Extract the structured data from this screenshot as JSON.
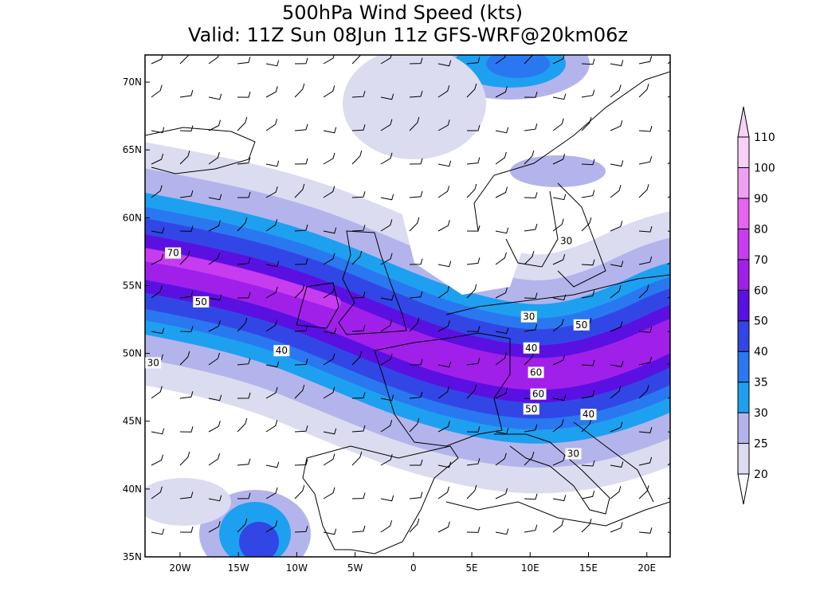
{
  "title": [
    "500hPa Wind Speed (kts)",
    "Valid: 11Z Sun 08Jun 11z GFS-WRF@20km06z"
  ],
  "map": {
    "lonlim": [
      -23,
      22
    ],
    "latlim": [
      35,
      72
    ],
    "lonticks": [
      {
        "value": -20,
        "label": "20W"
      },
      {
        "value": -15,
        "label": "15W"
      },
      {
        "value": -10,
        "label": "10W"
      },
      {
        "value": -5,
        "label": "5W"
      },
      0,
      {
        "value": 5,
        "label": "5E"
      },
      {
        "value": 10,
        "label": "10E"
      },
      {
        "value": 15,
        "label": "15E"
      },
      {
        "value": 20,
        "label": "20E"
      }
    ],
    "latticks": [
      {
        "value": 35,
        "label": "35N"
      },
      {
        "value": 40,
        "label": "40N"
      },
      {
        "value": 45,
        "label": "45N"
      },
      {
        "value": 50,
        "label": "50N"
      },
      {
        "value": 55,
        "label": "55N"
      },
      {
        "value": 60,
        "label": "60N"
      },
      {
        "value": 65,
        "label": "65N"
      },
      {
        "value": 70,
        "label": "70N"
      }
    ],
    "contour_labels": [
      {
        "lon": -20.6,
        "lat": 57.4,
        "value": 70
      },
      {
        "lon": -18.2,
        "lat": 53.8,
        "value": 50
      },
      {
        "lon": -11.3,
        "lat": 50.2,
        "value": 40
      },
      {
        "lon": -22.3,
        "lat": 49.3,
        "value": 30
      },
      {
        "lon": 13.1,
        "lat": 58.3,
        "value": 30
      },
      {
        "lon": 9.9,
        "lat": 52.7,
        "value": 30
      },
      {
        "lon": 14.4,
        "lat": 52.1,
        "value": 50
      },
      {
        "lon": 10.1,
        "lat": 50.4,
        "value": 40
      },
      {
        "lon": 10.5,
        "lat": 48.6,
        "value": 60
      },
      {
        "lon": 10.7,
        "lat": 47.0,
        "value": 60
      },
      {
        "lon": 10.1,
        "lat": 45.9,
        "value": 50
      },
      {
        "lon": 15.0,
        "lat": 45.5,
        "value": 40
      },
      {
        "lon": 13.7,
        "lat": 42.6,
        "value": 30
      }
    ]
  },
  "colorbar": {
    "levels": [
      20,
      25,
      30,
      35,
      40,
      50,
      60,
      70,
      80,
      90,
      100,
      110
    ],
    "colors": [
      "#dcdcf0",
      "#b4b4ec",
      "#1ea0f0",
      "#2a78f0",
      "#3246e6",
      "#5a10e0",
      "#a020ea",
      "#c83cf0",
      "#e664f0",
      "#f0a0f4",
      "#f8d0f8"
    ]
  }
}
